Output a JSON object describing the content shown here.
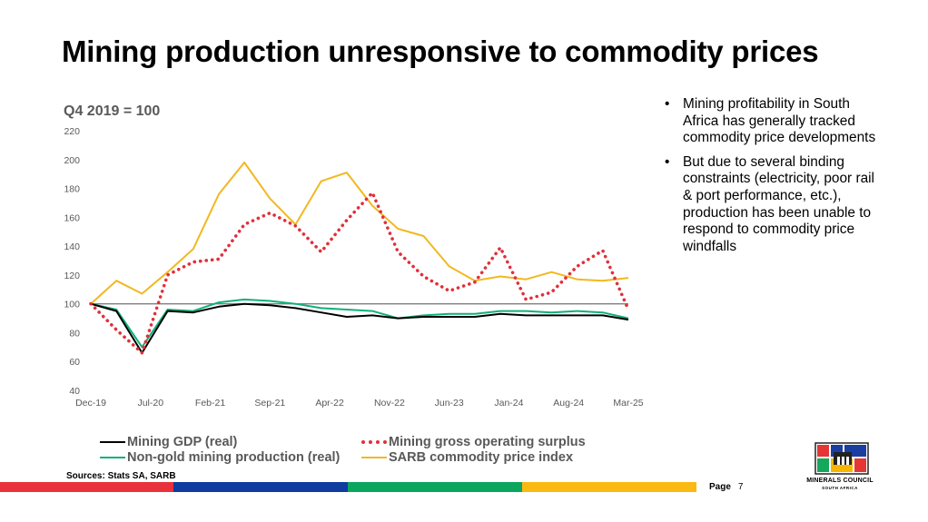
{
  "slide": {
    "title": "Mining production unresponsive to commodity prices",
    "subtitle": "Q4 2019 = 100",
    "sources": "Sources: Stats SA, SARB",
    "page_label": "Page",
    "page_number": "7"
  },
  "bullets": [
    "Mining profitability in South Africa has generally tracked commodity price developments",
    "But due to several binding constraints (electricity, poor rail & port performance, etc.), production has been unable to respond to commodity price windfalls"
  ],
  "bullet_char": "•",
  "logo": {
    "name": "MINERALS COUNCIL",
    "sub": "SOUTH AFRICA",
    "colors": [
      "#e63535",
      "#1b3fa0",
      "#14a85a",
      "#f7b500"
    ]
  },
  "stripe_colors": [
    "#e8323c",
    "#0f3c9e",
    "#0aa55f",
    "#fbb913"
  ],
  "chart_data": {
    "type": "line",
    "title": "Q4 2019 = 100",
    "x_ticks": [
      "Dec-19",
      "Jul-20",
      "Feb-21",
      "Sep-21",
      "Apr-22",
      "Nov-22",
      "Jun-23",
      "Jan-24",
      "Aug-24",
      "Mar-25"
    ],
    "ylim": [
      40,
      220
    ],
    "y_ticks": [
      40,
      60,
      80,
      100,
      120,
      140,
      160,
      180,
      200,
      220
    ],
    "reference_line": 100,
    "grid": false,
    "x": [
      "Q4-19",
      "Q1-20",
      "Q2-20",
      "Q3-20",
      "Q4-20",
      "Q1-21",
      "Q2-21",
      "Q3-21",
      "Q4-21",
      "Q1-22",
      "Q2-22",
      "Q3-22",
      "Q4-22",
      "Q1-23",
      "Q2-23",
      "Q3-23",
      "Q4-23",
      "Q1-24",
      "Q2-24",
      "Q3-24",
      "Q4-24",
      "Q1-25"
    ],
    "series": [
      {
        "name": "Mining GDP (real)",
        "color": "#000000",
        "style": "solid",
        "values": [
          100,
          95,
          66,
          95,
          94,
          98,
          100,
          99,
          97,
          94,
          91,
          92,
          90,
          91,
          91,
          91,
          93,
          92,
          92,
          92,
          92,
          89
        ]
      },
      {
        "name": "Mining gross operating surplus",
        "color": "#e0303a",
        "style": "dotted",
        "values": [
          100,
          82,
          66,
          120,
          129,
          131,
          155,
          163,
          154,
          136,
          158,
          177,
          136,
          119,
          109,
          115,
          139,
          103,
          108,
          126,
          137,
          96
        ]
      },
      {
        "name": "Non-gold mining production (real)",
        "color": "#11b07a",
        "style": "solid",
        "values": [
          100,
          96,
          70,
          96,
          95,
          101,
          103,
          102,
          100,
          97,
          96,
          95,
          90,
          92,
          93,
          93,
          95,
          95,
          94,
          95,
          94,
          90
        ]
      },
      {
        "name": "SARB commodity price index",
        "color": "#f2b820",
        "style": "solid",
        "values": [
          100,
          116,
          107,
          122,
          138,
          176,
          198,
          173,
          155,
          185,
          191,
          168,
          152,
          147,
          126,
          116,
          119,
          117,
          122,
          117,
          116,
          118
        ]
      }
    ],
    "legend_position": "bottom"
  }
}
